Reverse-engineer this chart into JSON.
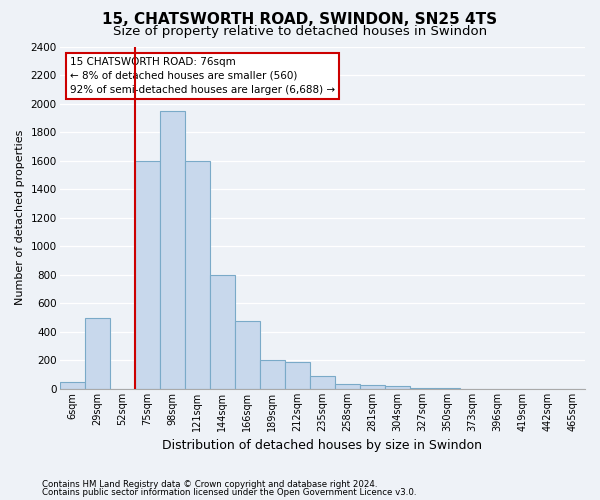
{
  "title": "15, CHATSWORTH ROAD, SWINDON, SN25 4TS",
  "subtitle": "Size of property relative to detached houses in Swindon",
  "xlabel": "Distribution of detached houses by size in Swindon",
  "ylabel": "Number of detached properties",
  "categories": [
    "6sqm",
    "29sqm",
    "52sqm",
    "75sqm",
    "98sqm",
    "121sqm",
    "144sqm",
    "166sqm",
    "189sqm",
    "212sqm",
    "235sqm",
    "258sqm",
    "281sqm",
    "304sqm",
    "327sqm",
    "350sqm",
    "373sqm",
    "396sqm",
    "419sqm",
    "442sqm",
    "465sqm"
  ],
  "values": [
    50,
    500,
    0,
    1600,
    1950,
    1600,
    800,
    480,
    200,
    190,
    90,
    35,
    30,
    20,
    10,
    5,
    3,
    2,
    2,
    2,
    2
  ],
  "bar_color": "#c8d8ec",
  "bar_edgecolor": "#7aaac8",
  "vline_color": "#cc0000",
  "annotation_text": "15 CHATSWORTH ROAD: 76sqm\n← 8% of detached houses are smaller (560)\n92% of semi-detached houses are larger (6,688) →",
  "annotation_box_color": "#ffffff",
  "annotation_box_edgecolor": "#cc0000",
  "ylim": [
    0,
    2400
  ],
  "yticks": [
    0,
    200,
    400,
    600,
    800,
    1000,
    1200,
    1400,
    1600,
    1800,
    2000,
    2200,
    2400
  ],
  "footer1": "Contains HM Land Registry data © Crown copyright and database right 2024.",
  "footer2": "Contains public sector information licensed under the Open Government Licence v3.0.",
  "background_color": "#eef2f7",
  "grid_color": "#ffffff",
  "title_fontsize": 11,
  "subtitle_fontsize": 9.5,
  "xlabel_fontsize": 9,
  "ylabel_fontsize": 8
}
